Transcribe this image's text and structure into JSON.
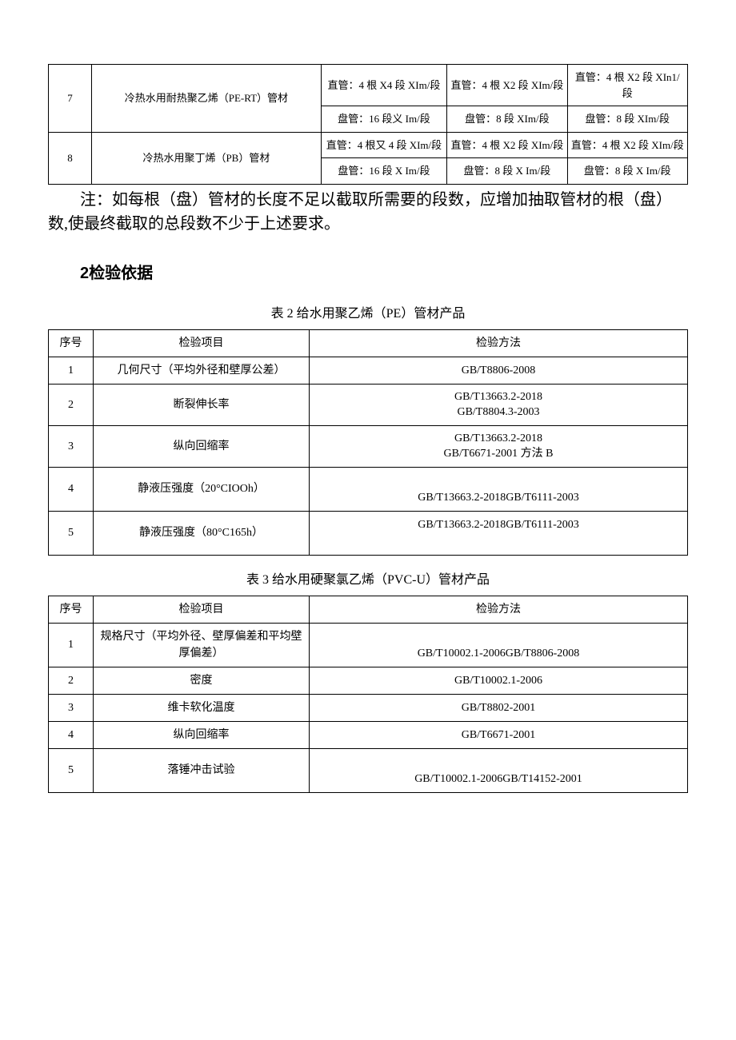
{
  "table1": {
    "rows": [
      {
        "seq": "7",
        "name": "冷热水用耐热聚乙烯（PE-RT）管材",
        "c1a": "直管：4 根 X4 段 XIm/段",
        "c2a": "直管：4 根 X2 段 XIm/段",
        "c3a": "直管：4 根 X2 段 XIn1/段",
        "c1b": "盘管：16 段义 Im/段",
        "c2b": "盘管：8 段 XIm/段",
        "c3b": "盘管：8 段 XIm/段"
      },
      {
        "seq": "8",
        "name": "冷热水用聚丁烯（PB）管材",
        "c1a": "直管：4 根又 4 段 XIm/段",
        "c2a": "直管：4 根 X2 段 XIm/段",
        "c3a": "直管：4 根 X2 段 XIm/段",
        "c1b": "盘管：16 段 X Im/段",
        "c2b": "盘管：8 段 X Im/段",
        "c3b": "盘管：8 段 X Im/段"
      }
    ]
  },
  "note": "注：如每根（盘）管材的长度不足以截取所需要的段数，应增加抽取管材的根（盘）数,使最终截取的总段数不少于上述要求。",
  "section2": {
    "heading": "2检验依据"
  },
  "table2": {
    "title": "表 2 给水用聚乙烯（PE）管材产品",
    "header": {
      "seq": "序号",
      "item": "检验项目",
      "method": "检验方法"
    },
    "rows": [
      {
        "seq": "1",
        "item": "几何尺寸（平均外径和壁厚公差）",
        "method": "GB/T8806-2008"
      },
      {
        "seq": "2",
        "item": "断裂伸长率",
        "method_l1": "GB/T13663.2-2018",
        "method_l2": "GB/T8804.3-2003"
      },
      {
        "seq": "3",
        "item": "纵向回缩率",
        "method_l1": "GB/T13663.2-2018",
        "method_l2": "GB/T6671-2001 方法 B"
      },
      {
        "seq": "4",
        "item": "静液压强度（20°CIOOh）",
        "method": "GB/T13663.2-2018GB/T6111-2003"
      },
      {
        "seq": "5",
        "item": "静液压强度（80°C165h）",
        "method": "GB/T13663.2-2018GB/T6111-2003"
      }
    ]
  },
  "table3": {
    "title": "表 3 给水用硬聚氯乙烯（PVC-U）管材产品",
    "header": {
      "seq": "序号",
      "item": "检验项目",
      "method": "检验方法"
    },
    "rows": [
      {
        "seq": "1",
        "item": "规格尺寸（平均外径、壁厚偏差和平均壁厚偏差）",
        "method": "GB/T10002.1-2006GB/T8806-2008"
      },
      {
        "seq": "2",
        "item": "密度",
        "method": "GB/T10002.1-2006"
      },
      {
        "seq": "3",
        "item": "维卡软化温度",
        "method": "GB/T8802-2001"
      },
      {
        "seq": "4",
        "item": "纵向回缩率",
        "method": "GB/T6671-2001"
      },
      {
        "seq": "5",
        "item": "落锤冲击试验",
        "method": "GB/T10002.1-2006GB/T14152-2001"
      }
    ]
  }
}
